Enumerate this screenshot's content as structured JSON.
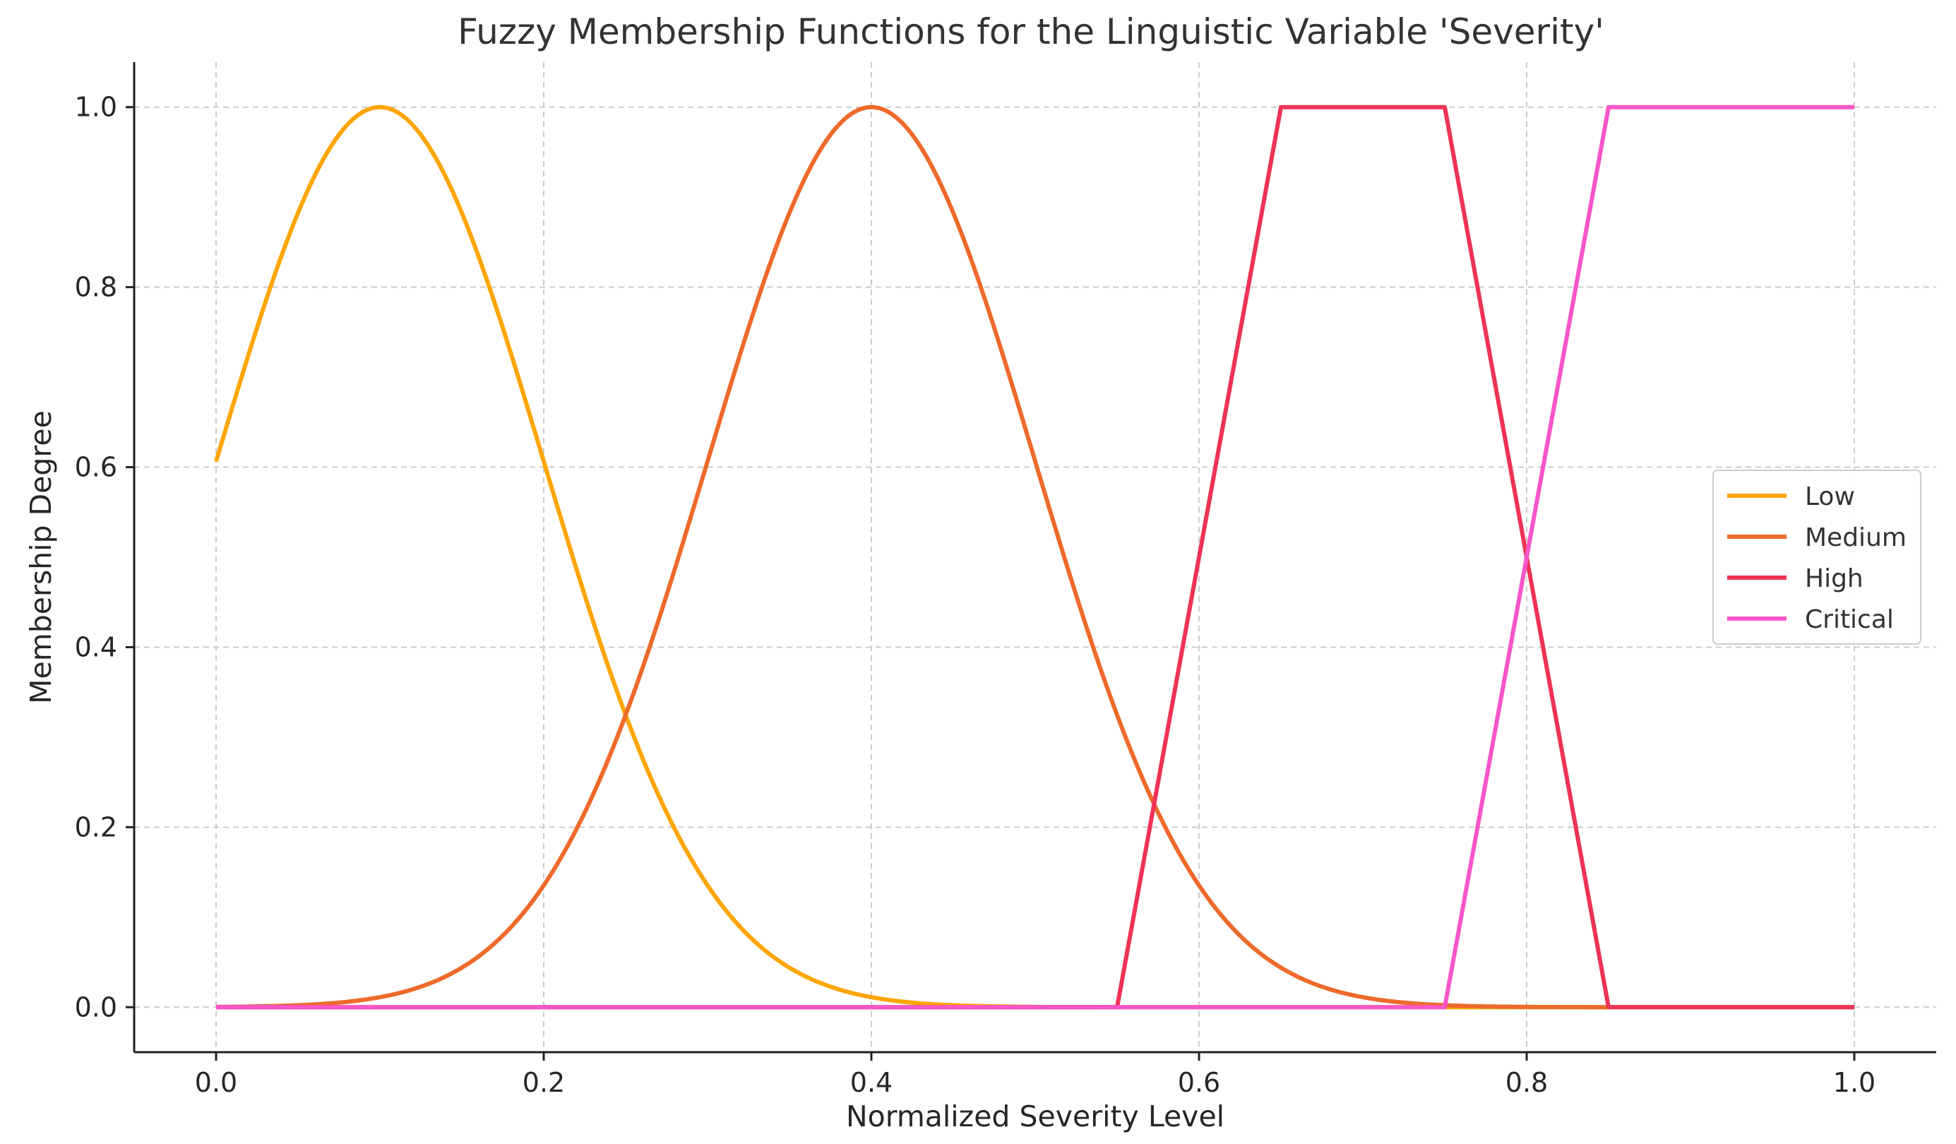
{
  "chart_data": {
    "type": "line",
    "title": "Fuzzy Membership Functions for the Linguistic Variable 'Severity'",
    "xlabel": "Normalized Severity Level",
    "ylabel": "Membership Degree",
    "xlim": [
      -0.05,
      1.05
    ],
    "ylim": [
      -0.05,
      1.05
    ],
    "xticks": [
      0.0,
      0.2,
      0.4,
      0.6,
      0.8,
      1.0
    ],
    "xtick_labels": [
      "0.0",
      "0.2",
      "0.4",
      "0.6",
      "0.8",
      "1.0"
    ],
    "yticks": [
      0.0,
      0.2,
      0.4,
      0.6,
      0.8,
      1.0
    ],
    "ytick_labels": [
      "0.0",
      "0.2",
      "0.4",
      "0.6",
      "0.8",
      "1.0"
    ],
    "grid": true,
    "legend_position": "center-right",
    "x_range": [
      0.0,
      1.0
    ],
    "series": [
      {
        "name": "Low",
        "kind": "gaussian",
        "mean": 0.1,
        "sigma": 0.1,
        "color": "#FFA500"
      },
      {
        "name": "Medium",
        "kind": "gaussian",
        "mean": 0.4,
        "sigma": 0.1,
        "color": "#EE6A2A"
      },
      {
        "name": "High",
        "kind": "trapezoid",
        "points": [
          0.55,
          0.65,
          0.75,
          0.85
        ],
        "color": "#EE3355"
      },
      {
        "name": "Critical",
        "kind": "trapezoid",
        "points": [
          0.75,
          0.85,
          1.0,
          1.0
        ],
        "color": "#F755C8"
      }
    ]
  }
}
